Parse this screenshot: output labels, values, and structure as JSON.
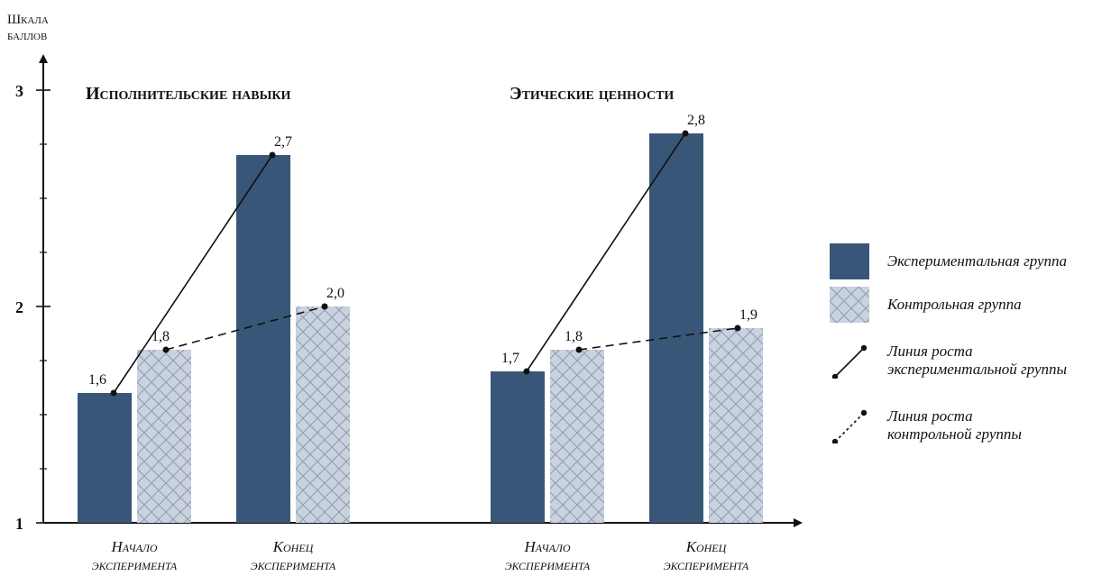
{
  "chart_data": {
    "type": "bar",
    "ylabel": [
      "Шкала",
      "баллов"
    ],
    "ylim": [
      1,
      3
    ],
    "y_ticks": [
      "1",
      "2",
      "3"
    ],
    "groups": [
      {
        "title": "Исполнительские навыки",
        "categories": [
          {
            "line1": "Начало",
            "line2": "эксперимента"
          },
          {
            "line1": "Конец",
            "line2": "эксперимента"
          }
        ],
        "experimental": [
          "1,6",
          "2,7"
        ],
        "control": [
          "1,8",
          "2,0"
        ],
        "experimental_values": [
          1.6,
          2.7
        ],
        "control_values": [
          1.8,
          2.0
        ]
      },
      {
        "title": "Этические ценности",
        "categories": [
          {
            "line1": "Начало",
            "line2": "эксперимента"
          },
          {
            "line1": "Конец",
            "line2": "эксперимента"
          }
        ],
        "experimental": [
          "1,7",
          "2,8"
        ],
        "control": [
          "1,8",
          "1,9"
        ],
        "experimental_values": [
          1.7,
          2.8
        ],
        "control_values": [
          1.8,
          1.9
        ]
      }
    ],
    "series": [
      {
        "name": "Экспериментальная группа",
        "color": "#385778"
      },
      {
        "name": "Контрольная группа",
        "color": "#c5cfdc"
      }
    ]
  },
  "legend": {
    "experimental_label": "Экспериментальная группа",
    "control_label": "Контрольная группа",
    "exp_line_1": "Линия роста",
    "exp_line_2": "экспериментальной группы",
    "ctrl_line_1": "Линия роста",
    "ctrl_line_2": "контрольной группы"
  }
}
